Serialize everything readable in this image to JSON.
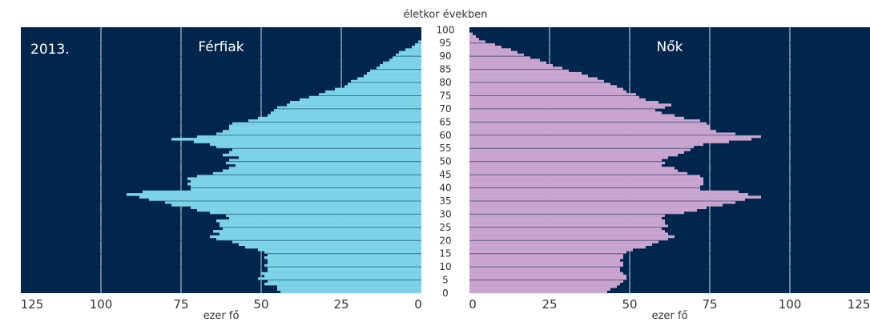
{
  "chart_data": {
    "type": "bar",
    "subtype": "population-pyramid",
    "year_label": "2013.",
    "top_axis_label": "életkor években",
    "x_unit_label": "ezer fő",
    "x_ticks": [
      0,
      25,
      50,
      75,
      100,
      125
    ],
    "xlim": [
      0,
      125
    ],
    "age_ticks": [
      0,
      5,
      10,
      15,
      20,
      25,
      30,
      35,
      40,
      45,
      50,
      55,
      60,
      65,
      70,
      75,
      80,
      85,
      90,
      95,
      100
    ],
    "ages": [
      0,
      1,
      2,
      3,
      4,
      5,
      6,
      7,
      8,
      9,
      10,
      11,
      12,
      13,
      14,
      15,
      16,
      17,
      18,
      19,
      20,
      21,
      22,
      23,
      24,
      25,
      26,
      27,
      28,
      29,
      30,
      31,
      32,
      33,
      34,
      35,
      36,
      37,
      38,
      39,
      40,
      41,
      42,
      43,
      44,
      45,
      46,
      47,
      48,
      49,
      50,
      51,
      52,
      53,
      54,
      55,
      56,
      57,
      58,
      59,
      60,
      61,
      62,
      63,
      64,
      65,
      66,
      67,
      68,
      69,
      70,
      71,
      72,
      73,
      74,
      75,
      76,
      77,
      78,
      79,
      80,
      81,
      82,
      83,
      84,
      85,
      86,
      87,
      88,
      89,
      90,
      91,
      92,
      93,
      94,
      95,
      96,
      97,
      98,
      99,
      100
    ],
    "series": [
      {
        "name": "Férfiak",
        "color": "#7dd3e8",
        "values": [
          44,
          45,
          45,
          49,
          48,
          51,
          49,
          50,
          48,
          48,
          49,
          48,
          48,
          49,
          48,
          49,
          51,
          55,
          57,
          59,
          64,
          66,
          63,
          65,
          62,
          63,
          63,
          64,
          60,
          61,
          66,
          70,
          72,
          78,
          80,
          85,
          88,
          92,
          87,
          72,
          72,
          73,
          72,
          73,
          70,
          65,
          62,
          60,
          58,
          61,
          60,
          57,
          62,
          60,
          59,
          64,
          66,
          71,
          78,
          70,
          64,
          62,
          60,
          60,
          59,
          54,
          51,
          48,
          47,
          46,
          45,
          42,
          41,
          38,
          35,
          32,
          30,
          27,
          24,
          23,
          22,
          20,
          18,
          17,
          16,
          14,
          13,
          12,
          10,
          9,
          8,
          7,
          5,
          3,
          2,
          1,
          0,
          0,
          0,
          0,
          0
        ]
      },
      {
        "name": "Nők",
        "color": "#c9a5cf",
        "values": [
          43,
          44,
          46,
          47,
          48,
          49,
          49,
          48,
          47,
          47,
          48,
          48,
          47,
          48,
          48,
          49,
          51,
          55,
          57,
          59,
          62,
          64,
          62,
          61,
          60,
          62,
          61,
          61,
          60,
          61,
          67,
          71,
          74,
          79,
          83,
          86,
          91,
          87,
          84,
          72,
          72,
          73,
          73,
          73,
          72,
          68,
          65,
          64,
          60,
          61,
          60,
          62,
          65,
          67,
          69,
          70,
          73,
          81,
          88,
          91,
          83,
          77,
          75,
          75,
          74,
          72,
          67,
          64,
          60,
          58,
          61,
          63,
          59,
          55,
          53,
          52,
          49,
          48,
          46,
          44,
          42,
          40,
          37,
          35,
          31,
          29,
          26,
          24,
          22,
          19,
          17,
          15,
          13,
          10,
          8,
          5,
          3,
          2,
          1,
          0,
          0
        ]
      }
    ]
  }
}
